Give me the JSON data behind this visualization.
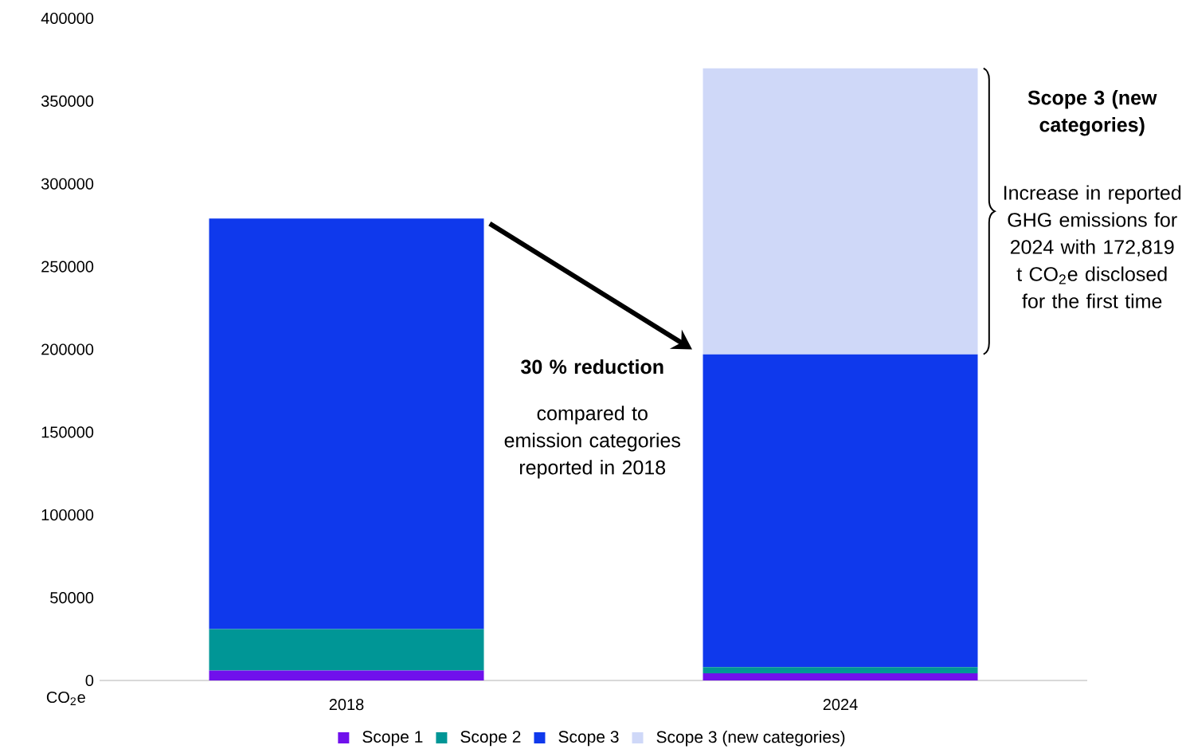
{
  "chart_data": {
    "type": "bar",
    "stacked": true,
    "ylabel": "CO$_{2}$e",
    "categories": [
      "2018",
      "2024"
    ],
    "series": [
      {
        "name": "Scope 1",
        "color": "#7010ec",
        "values": [
          6000,
          4300
        ]
      },
      {
        "name": "Scope 2",
        "color": "#009696",
        "values": [
          25000,
          3700
        ]
      },
      {
        "name": "Scope 3",
        "color": "#0f39ec",
        "values": [
          248000,
          189000
        ]
      },
      {
        "name": "Scope 3 (new categories)",
        "color": "#cfd8f8",
        "values": [
          0,
          172819
        ]
      }
    ],
    "ylim": [
      0,
      400000
    ],
    "yticks": [
      0,
      50000,
      100000,
      150000,
      200000,
      250000,
      300000,
      350000,
      400000
    ],
    "legend": "bottom",
    "annotations": [
      "30 % reduction",
      "compared to emission categories reported in 2018",
      "Scope 3 (new categories)",
      "Increase in reported GHG emissions for 2024 with 172,819 t CO$_{2}$e disclosed for the first time"
    ]
  }
}
